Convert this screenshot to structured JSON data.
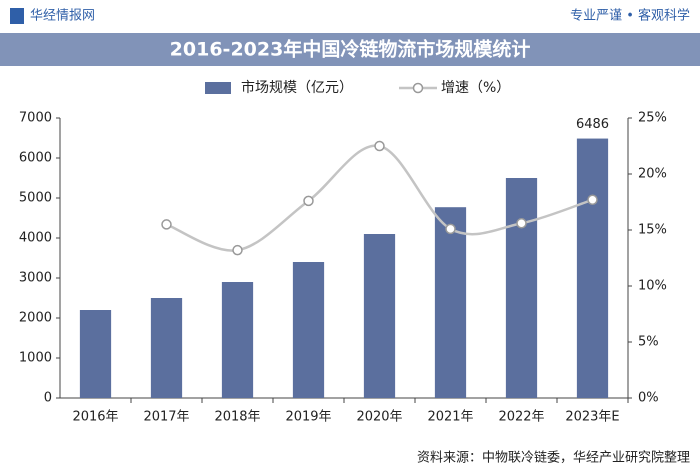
{
  "header": {
    "brand": "华经情报网",
    "slogan": "专业严谨 • 客观科学"
  },
  "chart_data": {
    "type": "combo",
    "title": "2016-2023年中国冷链物流市场规模统计",
    "categories": [
      "2016年",
      "2017年",
      "2018年",
      "2019年",
      "2020年",
      "2021年",
      "2022年",
      "2023年E"
    ],
    "series": [
      {
        "name": "市场规模（亿元）",
        "type": "bar",
        "color": "#5b6f9e",
        "values": [
          2200,
          2500,
          2900,
          3400,
          4100,
          4770,
          5500,
          6486
        ],
        "value_labels": [
          null,
          null,
          null,
          null,
          null,
          null,
          null,
          "6486"
        ]
      },
      {
        "name": "增速（%）",
        "type": "line",
        "axis": "y2",
        "color": "#c4c4c4",
        "values": [
          null,
          15.5,
          13.2,
          17.6,
          22.5,
          15.1,
          15.6,
          17.7
        ]
      }
    ],
    "ylim": [
      0,
      7000
    ],
    "yticks": [
      0,
      1000,
      2000,
      3000,
      4000,
      5000,
      6000,
      7000
    ],
    "y2lim": [
      0,
      25
    ],
    "y2ticks": [
      {
        "value": 0,
        "label": "0%"
      },
      {
        "value": 5,
        "label": "5%"
      },
      {
        "value": 10,
        "label": "10%"
      },
      {
        "value": 15,
        "label": "15%"
      },
      {
        "value": 20,
        "label": "20%"
      },
      {
        "value": 25,
        "label": "25%"
      }
    ]
  },
  "source": "资料来源：中物联冷链委，华经产业研究院整理"
}
